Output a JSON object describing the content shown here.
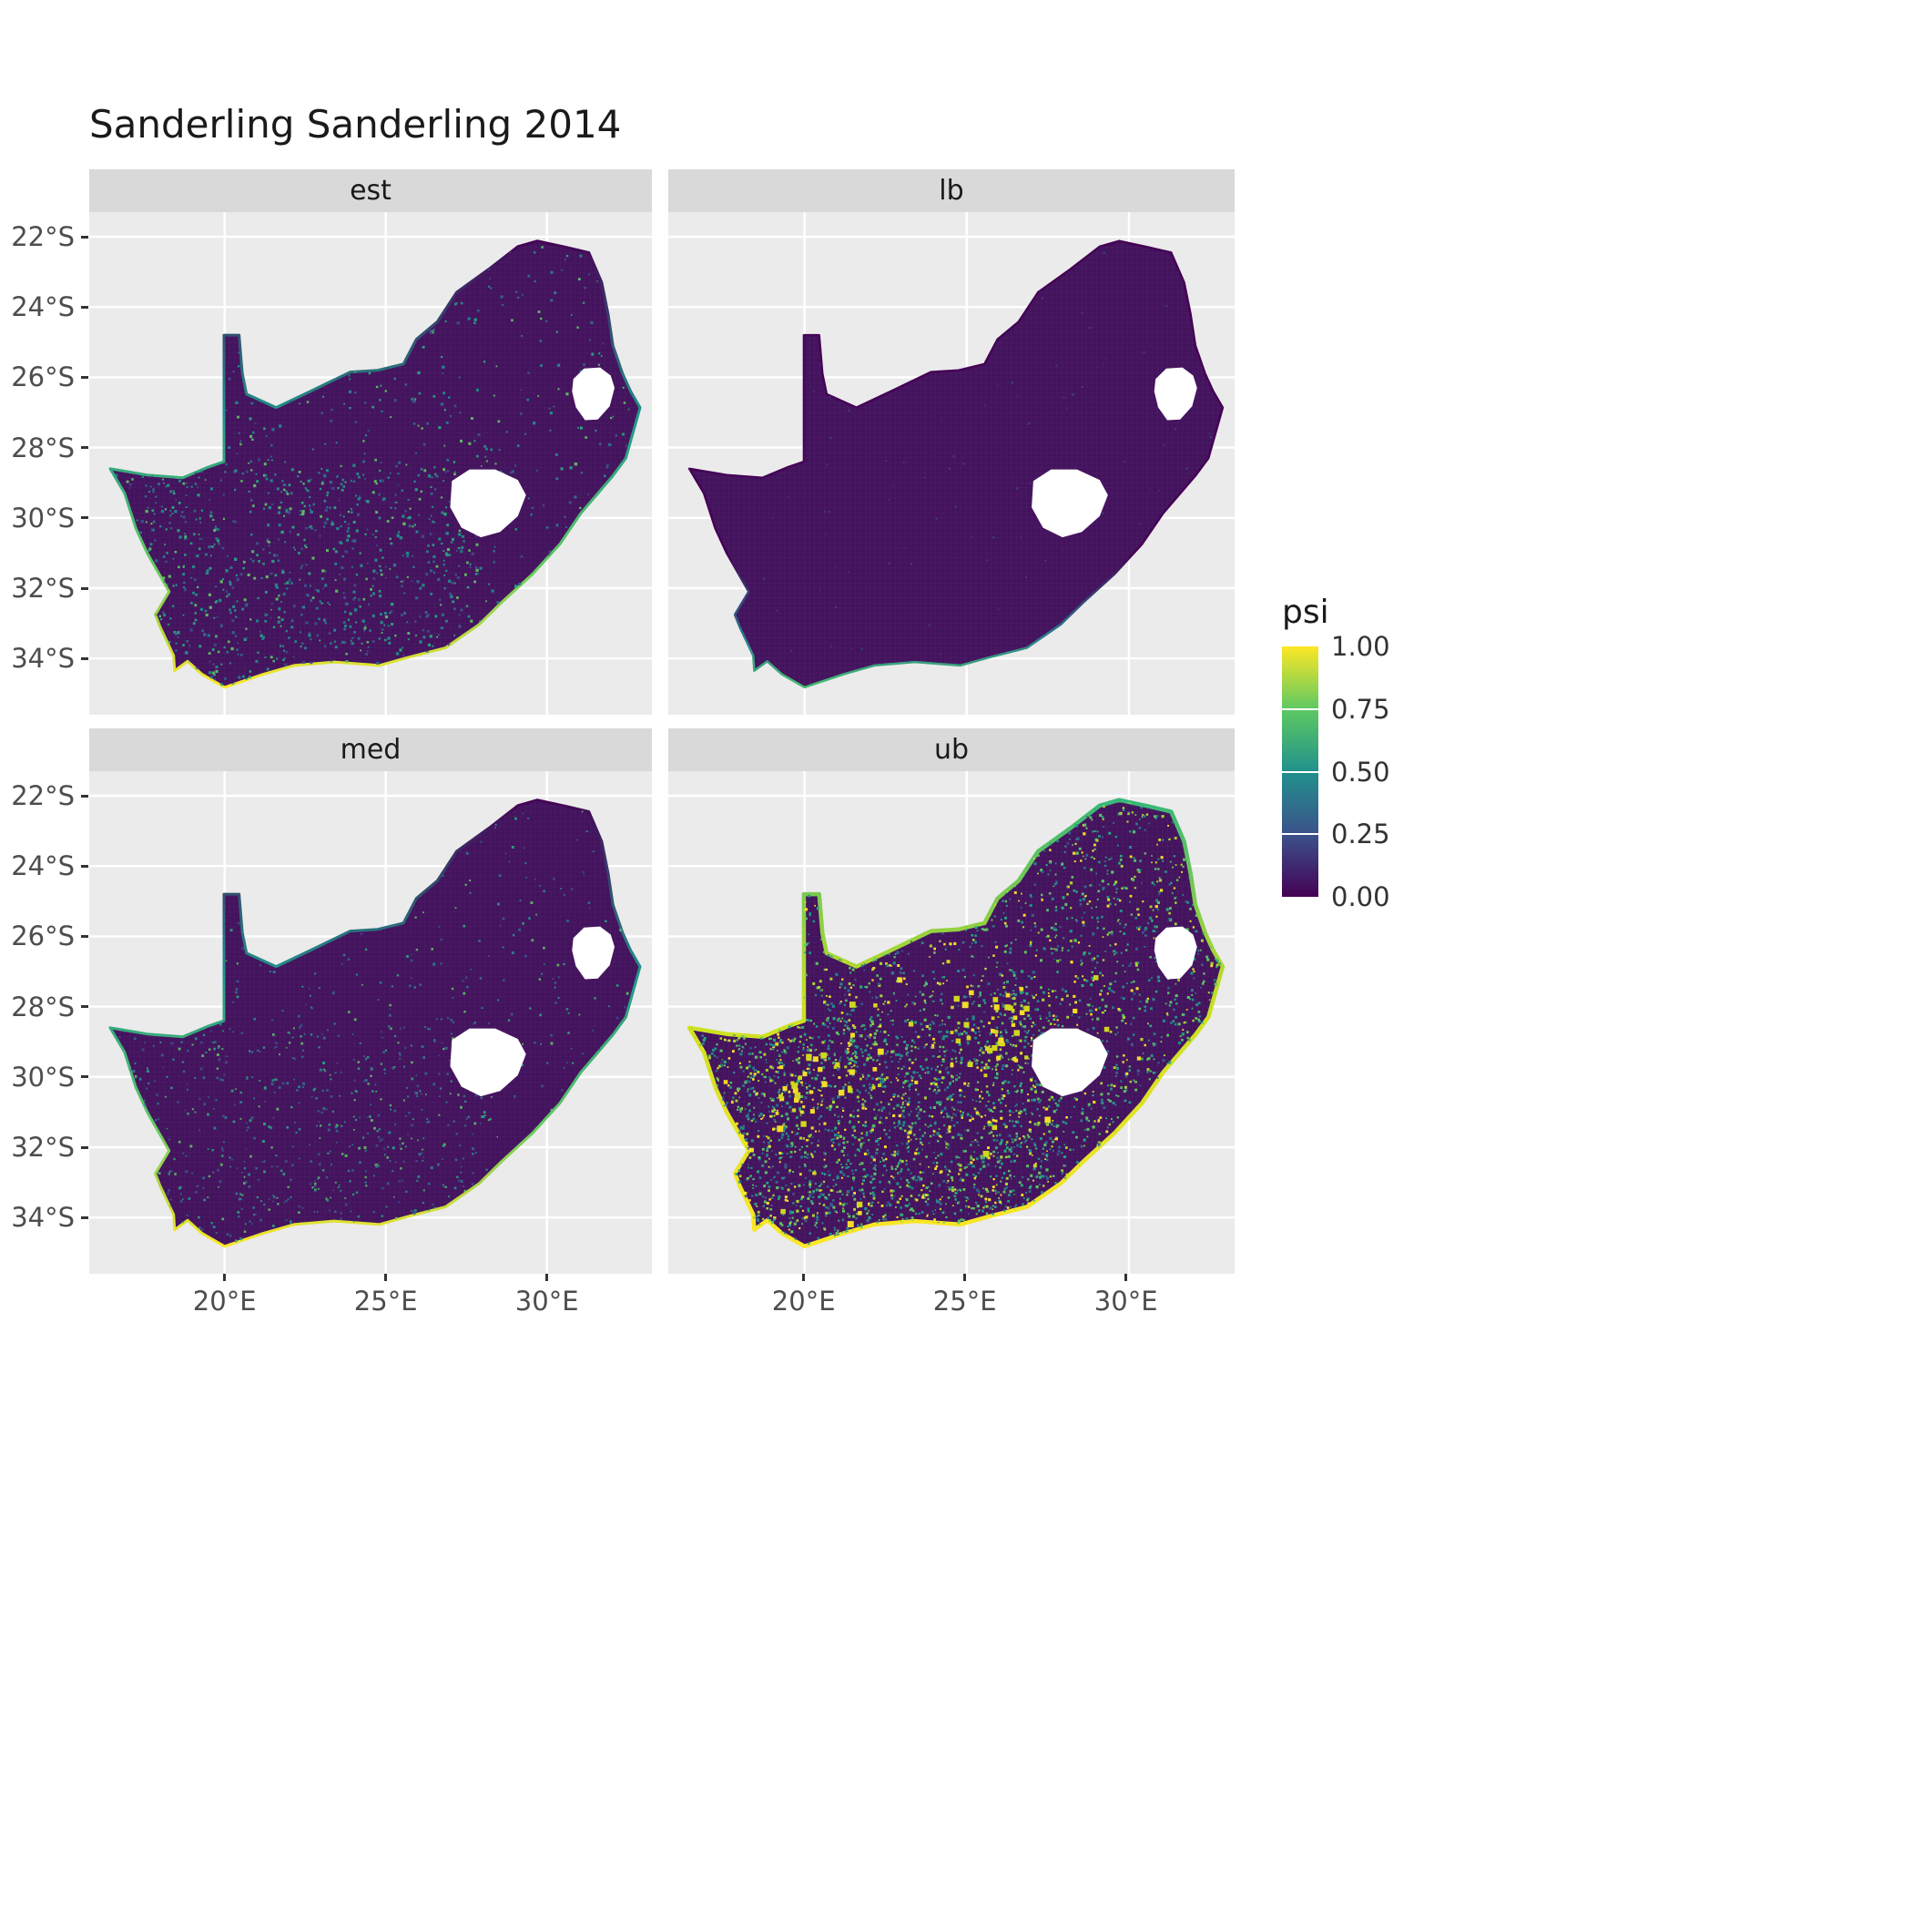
{
  "chart_data": {
    "type": "heatmap",
    "title": "Sanderling Sanderling 2014",
    "region": "South Africa",
    "variable": "psi",
    "facet_labels": [
      "est",
      "lb",
      "med",
      "ub"
    ],
    "x_axis": {
      "ticks": [
        {
          "lon": 20,
          "label": "20°E"
        },
        {
          "lon": 25,
          "label": "25°E"
        },
        {
          "lon": 30,
          "label": "30°E"
        }
      ],
      "range_lon": [
        15.8,
        33.3
      ]
    },
    "y_axis": {
      "ticks": [
        {
          "lat": 22,
          "label": "22°S"
        },
        {
          "lat": 24,
          "label": "24°S"
        },
        {
          "lat": 26,
          "label": "26°S"
        },
        {
          "lat": 28,
          "label": "28°S"
        },
        {
          "lat": 30,
          "label": "30°S"
        },
        {
          "lat": 32,
          "label": "32°S"
        },
        {
          "lat": 34,
          "label": "34°S"
        }
      ],
      "range_lat": [
        21.3,
        35.6
      ]
    },
    "legend": {
      "title": "psi",
      "range": [
        0,
        1
      ],
      "breaks": [
        {
          "value": 1.0,
          "label": "1.00"
        },
        {
          "value": 0.75,
          "label": "0.75"
        },
        {
          "value": 0.5,
          "label": "0.50"
        },
        {
          "value": 0.25,
          "label": "0.25"
        },
        {
          "value": 0.0,
          "label": "0.00"
        }
      ],
      "colors": [
        [
          "0",
          "#440154"
        ],
        [
          "0.25",
          "#3b528b"
        ],
        [
          "0.5",
          "#21918c"
        ],
        [
          "0.75",
          "#5ec962"
        ],
        [
          "1",
          "#fde725"
        ]
      ]
    },
    "panel_bg": "#ebebeb",
    "strip_bg": "#d9d9d9",
    "base_fill": "#44135e",
    "facets": [
      {
        "label": "est",
        "description": "mostly psi near 0; scattered moderate values in southwest and central interior; high psi along west and south coasts",
        "seed": 7,
        "attempts": 6500,
        "keep": 0.5,
        "north_keep": 0.3,
        "dot_size": [
          1.6,
          3.4
        ],
        "opacity": 0.9,
        "palette": [
          "#3b528b",
          "#2c728e",
          "#21918c",
          "#21918c",
          "#27ad81",
          "#5ec962"
        ],
        "edge_width": 3,
        "edge_stops": [
          [
            "0",
            "#440154"
          ],
          [
            "0.4",
            "#1f988b"
          ],
          [
            "0.72",
            "#5ec962"
          ],
          [
            "1",
            "#fde725"
          ]
        ],
        "hotspots": null
      },
      {
        "label": "lb",
        "description": "psi near 0 almost everywhere; slight teal-green along far southwest coast",
        "seed": 5,
        "attempts": 800,
        "keep": 0.2,
        "north_keep": 1,
        "dot_size": [
          1.4,
          2.6
        ],
        "opacity": 0.5,
        "palette": [
          "#3b528b",
          "#31688e"
        ],
        "edge_width": 2.5,
        "edge_stops": [
          [
            "0",
            "#440154"
          ],
          [
            "0.7",
            "#440154"
          ],
          [
            "0.88",
            "#2a788e"
          ],
          [
            "1",
            "#44bf70"
          ]
        ],
        "hotspots": null
      },
      {
        "label": "med",
        "description": "mostly psi near 0; sparse moderate values in southwest interior; high psi rim on west and south coasts",
        "seed": 13,
        "attempts": 6000,
        "keep": 0.4,
        "north_keep": 0.28,
        "dot_size": [
          1.5,
          3.0
        ],
        "opacity": 0.85,
        "palette": [
          "#3b528b",
          "#2c728e",
          "#21918c",
          "#27ad81",
          "#5ec962"
        ],
        "edge_width": 3,
        "edge_stops": [
          [
            "0",
            "#440154"
          ],
          [
            "0.4",
            "#1f988b"
          ],
          [
            "0.72",
            "#5ec962"
          ],
          [
            "1",
            "#fde725"
          ]
        ],
        "hotspots": null
      },
      {
        "label": "ub",
        "description": "widespread moderate-to-high psi across southern and central interior; bright yellow patches near 25.6E 28.5S and 20.3E 30.4S; strong yellow rim along entire coastline",
        "seed": 23,
        "attempts": 16000,
        "keep": 0.55,
        "north_keep": 0.5,
        "dot_size": [
          1.6,
          3.2
        ],
        "opacity": 0.95,
        "palette": [
          "#31688e",
          "#21918c",
          "#21918c",
          "#28ae80",
          "#5ec962",
          "#5ec962",
          "#addc30",
          "#fde725"
        ],
        "edge_width": 4.5,
        "edge_stops": [
          [
            "0",
            "#35b779"
          ],
          [
            "0.45",
            "#c8e020"
          ],
          [
            "1",
            "#fde725"
          ]
        ],
        "hotspots": {
          "count": 110,
          "clusters": [
            [
              25.6,
              28.5
            ],
            [
              20.3,
              30.4
            ]
          ],
          "colors": [
            "#fde725",
            "#d8e219"
          ]
        }
      }
    ],
    "outline": [
      [
        16.45,
        28.6
      ],
      [
        17.6,
        28.78
      ],
      [
        18.7,
        28.86
      ],
      [
        19.5,
        28.55
      ],
      [
        19.98,
        28.4
      ],
      [
        19.98,
        24.8
      ],
      [
        20.45,
        24.8
      ],
      [
        20.55,
        25.9
      ],
      [
        20.68,
        26.48
      ],
      [
        21.6,
        26.86
      ],
      [
        22.7,
        26.38
      ],
      [
        23.9,
        25.85
      ],
      [
        24.75,
        25.8
      ],
      [
        25.55,
        25.62
      ],
      [
        25.95,
        24.92
      ],
      [
        26.6,
        24.42
      ],
      [
        27.2,
        23.58
      ],
      [
        28.2,
        22.92
      ],
      [
        29.1,
        22.28
      ],
      [
        29.7,
        22.12
      ],
      [
        30.6,
        22.3
      ],
      [
        31.3,
        22.45
      ],
      [
        31.7,
        23.3
      ],
      [
        31.9,
        24.2
      ],
      [
        32.05,
        25.1
      ],
      [
        32.35,
        25.9
      ],
      [
        32.6,
        26.4
      ],
      [
        32.89,
        26.86
      ],
      [
        32.45,
        28.3
      ],
      [
        32.05,
        28.8
      ],
      [
        31.05,
        29.87
      ],
      [
        30.4,
        30.75
      ],
      [
        29.55,
        31.6
      ],
      [
        28.6,
        32.4
      ],
      [
        27.9,
        33.03
      ],
      [
        26.85,
        33.7
      ],
      [
        25.65,
        33.98
      ],
      [
        24.8,
        34.2
      ],
      [
        23.4,
        34.1
      ],
      [
        22.15,
        34.2
      ],
      [
        21.2,
        34.45
      ],
      [
        20.0,
        34.82
      ],
      [
        19.3,
        34.45
      ],
      [
        18.85,
        34.08
      ],
      [
        18.45,
        34.35
      ],
      [
        18.42,
        33.92
      ],
      [
        18.0,
        33.1
      ],
      [
        17.85,
        32.75
      ],
      [
        18.28,
        32.1
      ],
      [
        17.6,
        31.0
      ],
      [
        17.25,
        30.3
      ],
      [
        16.9,
        29.3
      ]
    ],
    "holes": {
      "lesotho": [
        [
          27.05,
          28.95
        ],
        [
          27.6,
          28.62
        ],
        [
          28.4,
          28.62
        ],
        [
          29.1,
          28.92
        ],
        [
          29.35,
          29.35
        ],
        [
          29.1,
          29.95
        ],
        [
          28.55,
          30.4
        ],
        [
          27.95,
          30.55
        ],
        [
          27.35,
          30.28
        ],
        [
          27.0,
          29.7
        ]
      ],
      "eswatini": [
        [
          30.82,
          26.05
        ],
        [
          31.15,
          25.75
        ],
        [
          31.65,
          25.72
        ],
        [
          31.98,
          25.95
        ],
        [
          32.1,
          26.3
        ],
        [
          31.95,
          26.82
        ],
        [
          31.58,
          27.2
        ],
        [
          31.18,
          27.22
        ],
        [
          30.9,
          26.85
        ],
        [
          30.78,
          26.4
        ]
      ]
    }
  }
}
